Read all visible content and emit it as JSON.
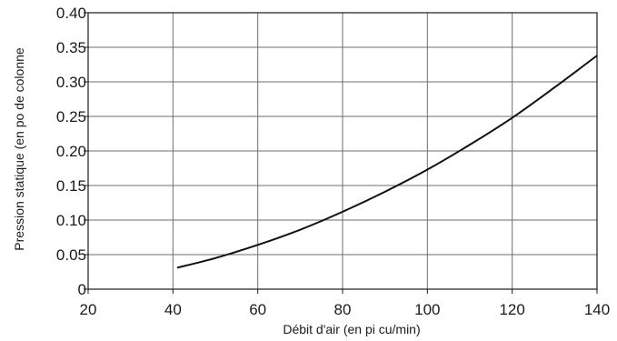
{
  "chart_data": {
    "type": "line",
    "title": "",
    "xlabel": "Débit d'air (en pi cu/min)",
    "ylabel": "Pression statique (en  po de colonne",
    "xlim": [
      20,
      140
    ],
    "ylim": [
      0,
      0.4
    ],
    "x_ticks": [
      "20",
      "40",
      "60",
      "80",
      "100",
      "120",
      "140"
    ],
    "y_ticks": [
      "0",
      "0.05",
      "0.10",
      "0.15",
      "0.20",
      "0.25",
      "0.30",
      "0.35",
      "0.40"
    ],
    "grid": true,
    "series": [
      {
        "x": [
          41,
          50,
          60,
          70,
          80,
          90,
          100,
          110,
          120,
          130,
          140
        ],
        "y": [
          0.031,
          0.045,
          0.064,
          0.086,
          0.112,
          0.141,
          0.173,
          0.209,
          0.248,
          0.292,
          0.338
        ],
        "color": "#111111"
      }
    ]
  }
}
